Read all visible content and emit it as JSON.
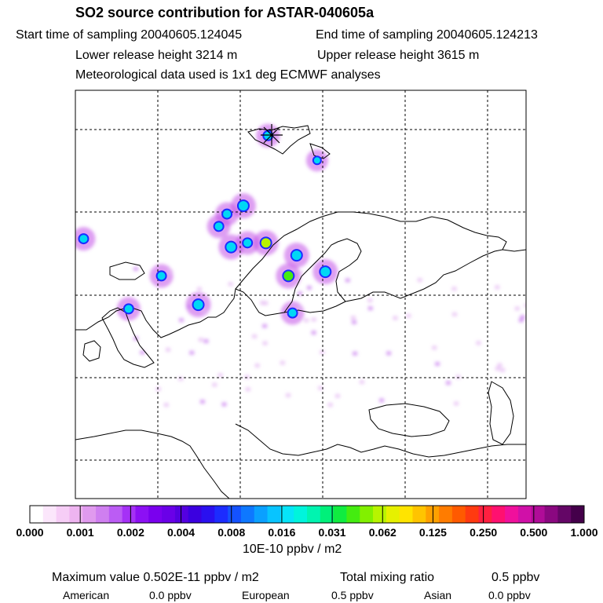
{
  "header": {
    "title": "SO2 source contribution for ASTAR-040605a",
    "start_label": "Start time of sampling 20040605.124045",
    "end_label": "End time of sampling 20040605.124213",
    "lower_label": "Lower release height 3214 m",
    "upper_label": "Upper release height 3615 m",
    "met_label": "Meteorological data used is 1x1 deg ECMWF analyses"
  },
  "colorbar": {
    "ticks": [
      "0.000",
      "0.001",
      "0.002",
      "0.004",
      "0.008",
      "0.016",
      "0.031",
      "0.062",
      "0.125",
      "0.250",
      "0.500",
      "1.000"
    ],
    "unit": "10E-10 ppbv / m2",
    "colors": [
      "#ffffff",
      "#fbe6fb",
      "#f6cdf6",
      "#eeb4f0",
      "#e09aee",
      "#cf7ff0",
      "#bb5cf4",
      "#a531f6",
      "#8c10f4",
      "#7a00ee",
      "#6a00e8",
      "#5400e0",
      "#3b00e0",
      "#2a10f0",
      "#1c2cff",
      "#1452ff",
      "#0e78ff",
      "#0aa0ff",
      "#08c4ff",
      "#06e4f8",
      "#00f4dc",
      "#00f4b0",
      "#00f07a",
      "#10ec40",
      "#44ec10",
      "#82f000",
      "#b8f400",
      "#e6f000",
      "#ffe400",
      "#ffc400",
      "#ffa000",
      "#ff7c00",
      "#ff5a00",
      "#ff3a10",
      "#ff2040",
      "#ff1070",
      "#f0109c",
      "#d010a8",
      "#b00c98",
      "#8a0880",
      "#640666",
      "#44004a"
    ]
  },
  "footer": {
    "max_label": "Maximum value  0.502E-11 ppbv / m2",
    "total_label": "Total mixing ratio",
    "total_value": "0.5 ppbv",
    "american_label": "American",
    "american_value": "0.0 ppbv",
    "european_label": "European",
    "european_value": "0.5 ppbv",
    "asian_label": "Asian",
    "asian_value": "0.0 ppbv"
  },
  "plumes": [
    {
      "lon": -28,
      "lat": 57,
      "color": "#00d8f4",
      "ring": "#1c2cff",
      "r": 6
    },
    {
      "lon": 17,
      "lat": 69.5,
      "color": "#00d8f4",
      "ring": "#1c2cff",
      "r": 6
    },
    {
      "lon": 29,
      "lat": 66.5,
      "color": "#00d8f4",
      "ring": "#1c2cff",
      "r": 5
    },
    {
      "lon": 11,
      "lat": 61,
      "color": "#00d8f4",
      "ring": "#1c2cff",
      "r": 7
    },
    {
      "lon": 7,
      "lat": 60,
      "color": "#00d8f4",
      "ring": "#1c2cff",
      "r": 6
    },
    {
      "lon": 5,
      "lat": 58.5,
      "color": "#00d8f4",
      "ring": "#1c2cff",
      "r": 6
    },
    {
      "lon": 8,
      "lat": 56,
      "color": "#00d8f4",
      "ring": "#1c2cff",
      "r": 7
    },
    {
      "lon": 12,
      "lat": 56.5,
      "color": "#00d8f4",
      "ring": "#1c2cff",
      "r": 6
    },
    {
      "lon": 16.5,
      "lat": 56.5,
      "color": "#b8f400",
      "ring": "#1c2cff",
      "r": 7
    },
    {
      "lon": 24,
      "lat": 55,
      "color": "#00d8f4",
      "ring": "#1c2cff",
      "r": 7
    },
    {
      "lon": 31,
      "lat": 53,
      "color": "#00d8f4",
      "ring": "#1c2cff",
      "r": 7
    },
    {
      "lon": 22,
      "lat": 52.5,
      "color": "#44ec10",
      "ring": "#1c2cff",
      "r": 7
    },
    {
      "lon": -9,
      "lat": 52.5,
      "color": "#00d8f4",
      "ring": "#1c2cff",
      "r": 6
    },
    {
      "lon": -17,
      "lat": 48.5,
      "color": "#00d8f4",
      "ring": "#1c2cff",
      "r": 6
    },
    {
      "lon": 0,
      "lat": 49,
      "color": "#00d8f4",
      "ring": "#1c2cff",
      "r": 7
    },
    {
      "lon": 23,
      "lat": 48,
      "color": "#00d8f4",
      "ring": "#1c2cff",
      "r": 6
    }
  ]
}
